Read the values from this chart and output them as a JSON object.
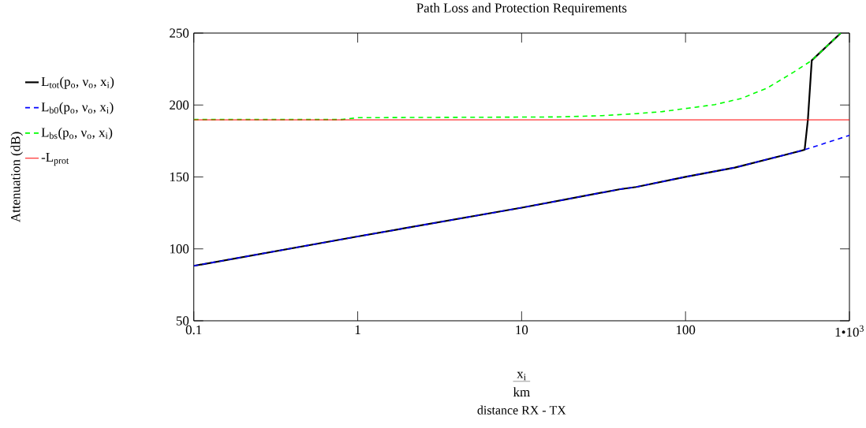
{
  "chart_data": {
    "type": "line",
    "title": "Path Loss and Protection  Requirements",
    "annotations": [
      "x$_{i}$",
      "km",
      "distance RX - TX",
      "Attenuation (dB)"
    ],
    "log": "x",
    "xlim": [
      0.1,
      1000
    ],
    "ylim": [
      50,
      250
    ],
    "xticks": [
      0.1,
      1,
      10,
      100,
      {
        "value": 1000,
        "label": "1•10$^{3}$"
      }
    ],
    "yticks": [
      50,
      100,
      150,
      200,
      250
    ],
    "legend": "left",
    "grid": false,
    "series": [
      {
        "name": "L$_{tot}$(p$_{o}$, ν$_{o}$, x$_{i}$)",
        "color": "#000000",
        "line_style": "solid",
        "x": [
          0.1,
          1,
          10,
          40,
          50,
          100,
          200,
          400,
          533,
          558,
          589,
          885
        ],
        "values": [
          88.2,
          108.6,
          128.6,
          141.5,
          143,
          150.1,
          156.5,
          165.2,
          168.9,
          189.9,
          231,
          250
        ]
      },
      {
        "name": "L$_{b0}$(p$_{o}$, ν$_{o}$, x$_{i}$)",
        "color": "#0000ff",
        "line_style": "dashed",
        "x": [
          0.1,
          1,
          10,
          40,
          50,
          100,
          200,
          400,
          533,
          656,
          1000
        ],
        "values": [
          88.2,
          108.6,
          128.6,
          141.5,
          143,
          150.1,
          156.5,
          165.2,
          168.9,
          172.2,
          178.9
        ]
      },
      {
        "name": "L$_{bs}$(p$_{o}$, ν$_{o}$, x$_{i}$)",
        "color": "#00ff00",
        "line_style": "dashed",
        "x": [
          0.1,
          0.8,
          1,
          16.4,
          31,
          50,
          72,
          104,
          151,
          218,
          315,
          456,
          589,
          885
        ],
        "values": [
          189.9,
          189.9,
          191.2,
          191.7,
          192.6,
          194,
          195.4,
          197.8,
          200.3,
          204.5,
          211.8,
          222.8,
          231,
          250
        ]
      },
      {
        "name": "-L$_{prot}$",
        "color": "#ff0000",
        "line_style": "solid",
        "x": [
          0.1,
          1000
        ],
        "values": [
          189.7,
          189.7
        ]
      }
    ]
  }
}
